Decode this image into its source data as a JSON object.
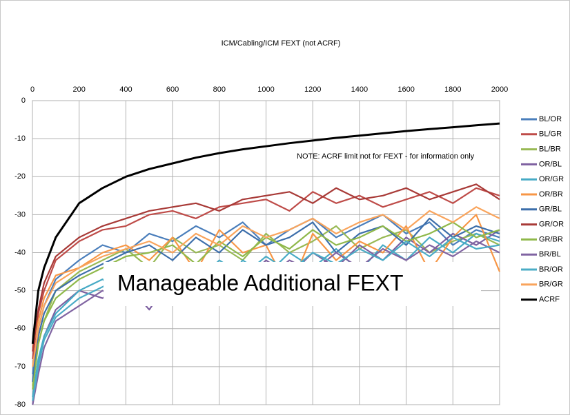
{
  "chart_data": {
    "type": "line",
    "title": "ICM/Cabling/ICM FEXT (not ACRF)",
    "annotations": [
      "NOTE: ACRF limit not for FEXT - for information only",
      "Manageable Additional FEXT"
    ],
    "x": [
      1,
      25,
      50,
      100,
      200,
      300,
      400,
      500,
      600,
      700,
      800,
      900,
      1000,
      1100,
      1200,
      1300,
      1400,
      1500,
      1600,
      1700,
      1800,
      1900,
      2000
    ],
    "xlim": [
      0,
      2000
    ],
    "xticks": [
      0,
      200,
      400,
      600,
      800,
      1000,
      1200,
      1400,
      1600,
      1800,
      2000
    ],
    "ylim": [
      -80,
      0
    ],
    "yticks": [
      0,
      -10,
      -20,
      -30,
      -40,
      -50,
      -60,
      -70,
      -80
    ],
    "grid": true,
    "legend": "right",
    "series": [
      {
        "name": "BL/OR",
        "color": "#4a7ebb",
        "values": [
          -72,
          -60,
          -54,
          -47,
          -42,
          -38,
          -40,
          -35,
          -37,
          -33,
          -36,
          -32,
          -38,
          -34,
          -31,
          -36,
          -33,
          -30,
          -35,
          -32,
          -38,
          -34,
          -36
        ]
      },
      {
        "name": "BL/GR",
        "color": "#be4b48",
        "values": [
          -68,
          -56,
          -50,
          -42,
          -37,
          -34,
          -33,
          -30,
          -29,
          -31,
          -28,
          -27,
          -26,
          -29,
          -24,
          -27,
          -25,
          -28,
          -26,
          -24,
          -27,
          -23,
          -25
        ]
      },
      {
        "name": "BL/BR",
        "color": "#98b954",
        "values": [
          -75,
          -64,
          -58,
          -50,
          -45,
          -42,
          -39,
          -44,
          -36,
          -40,
          -38,
          -42,
          -35,
          -40,
          -37,
          -33,
          -39,
          -36,
          -34,
          -40,
          -37,
          -35,
          -38
        ]
      },
      {
        "name": "OR/BL",
        "color": "#7d60a0",
        "values": [
          -80,
          -70,
          -62,
          -55,
          -50,
          -52,
          -48,
          -55,
          -46,
          -50,
          -44,
          -48,
          -42,
          -46,
          -40,
          -44,
          -38,
          -42,
          -36,
          -40,
          -35,
          -38,
          -34
        ]
      },
      {
        "name": "OR/GR",
        "color": "#46aac5",
        "values": [
          -78,
          -68,
          -62,
          -56,
          -50,
          -47,
          -52,
          -45,
          -48,
          -43,
          -50,
          -42,
          -46,
          -40,
          -44,
          -39,
          -45,
          -38,
          -42,
          -36,
          -40,
          -35,
          -37
        ]
      },
      {
        "name": "OR/BR",
        "color": "#f79646",
        "values": [
          -65,
          -58,
          -52,
          -46,
          -44,
          -40,
          -38,
          -42,
          -36,
          -45,
          -34,
          -40,
          -38,
          -50,
          -35,
          -42,
          -37,
          -40,
          -33,
          -45,
          -36,
          -30,
          -45
        ]
      },
      {
        "name": "GR/BL",
        "color": "#3c6eaa",
        "values": [
          -74,
          -62,
          -56,
          -50,
          -46,
          -43,
          -40,
          -38,
          -42,
          -36,
          -40,
          -34,
          -38,
          -36,
          -32,
          -40,
          -35,
          -33,
          -38,
          -31,
          -36,
          -33,
          -35
        ]
      },
      {
        "name": "GR/OR",
        "color": "#a83a37",
        "values": [
          -66,
          -55,
          -48,
          -41,
          -36,
          -33,
          -31,
          -29,
          -28,
          -27,
          -29,
          -26,
          -25,
          -24,
          -27,
          -23,
          -26,
          -25,
          -23,
          -26,
          -24,
          -22,
          -26
        ]
      },
      {
        "name": "GR/BR",
        "color": "#8fb84a",
        "values": [
          -76,
          -64,
          -58,
          -52,
          -47,
          -44,
          -41,
          -40,
          -38,
          -43,
          -37,
          -41,
          -36,
          -39,
          -34,
          -38,
          -36,
          -33,
          -37,
          -35,
          -32,
          -36,
          -34
        ]
      },
      {
        "name": "BR/BL",
        "color": "#8064a2",
        "values": [
          -80,
          -72,
          -65,
          -58,
          -54,
          -50,
          -53,
          -47,
          -51,
          -45,
          -49,
          -43,
          -47,
          -42,
          -45,
          -40,
          -44,
          -39,
          -42,
          -38,
          -41,
          -37,
          -40
        ]
      },
      {
        "name": "BR/OR",
        "color": "#4bacc6",
        "values": [
          -79,
          -70,
          -63,
          -57,
          -52,
          -49,
          -46,
          -50,
          -44,
          -48,
          -42,
          -46,
          -41,
          -45,
          -40,
          -43,
          -39,
          -42,
          -37,
          -41,
          -36,
          -39,
          -38
        ]
      },
      {
        "name": "BR/GR",
        "color": "#f9a45c",
        "values": [
          -70,
          -60,
          -54,
          -48,
          -44,
          -41,
          -39,
          -37,
          -40,
          -35,
          -38,
          -33,
          -36,
          -34,
          -31,
          -35,
          -32,
          -30,
          -34,
          -29,
          -32,
          -28,
          -31
        ]
      },
      {
        "name": "ACRF",
        "color": "#000000",
        "values": [
          -64,
          -50,
          -44,
          -36,
          -27,
          -23,
          -20,
          -18,
          -16.5,
          -15,
          -13.8,
          -12.8,
          -12,
          -11.2,
          -10.5,
          -9.8,
          -9.2,
          -8.6,
          -8,
          -7.5,
          -7,
          -6.5,
          -6
        ]
      }
    ]
  }
}
